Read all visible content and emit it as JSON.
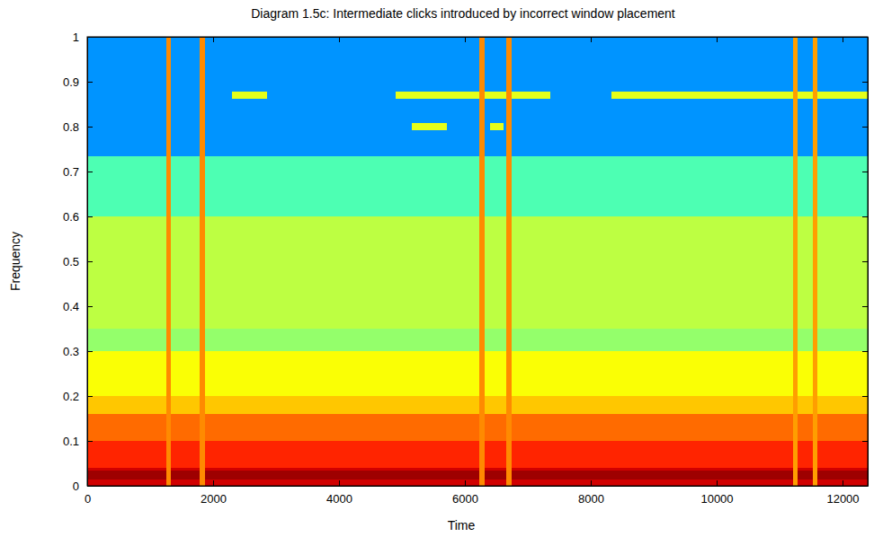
{
  "chart_data": {
    "type": "heatmap",
    "title": "Diagram 1.5c: Intermediate clicks introduced by incorrect window placement",
    "x_label": "Time",
    "y_label": "Frequency",
    "xlim": [
      0,
      12400
    ],
    "ylim": [
      0,
      1
    ],
    "xticks": [
      0,
      2000,
      4000,
      6000,
      8000,
      10000,
      12000
    ],
    "yticks": [
      0,
      0.1,
      0.2,
      0.3,
      0.4,
      0.5,
      0.6,
      0.7,
      0.8,
      0.9,
      1
    ],
    "color_range": [
      0,
      1
    ],
    "cells": [
      {
        "x0": 0,
        "x1": 12400,
        "y0": 0.735,
        "y1": 1,
        "value": 0.27
      },
      {
        "x0": 0,
        "x1": 12400,
        "y0": 0.6,
        "y1": 0.735,
        "value": 0.45
      },
      {
        "x0": 0,
        "x1": 12400,
        "y0": 0.35,
        "y1": 0.6,
        "value": 0.56
      },
      {
        "x0": 0,
        "x1": 12400,
        "y0": 0.3,
        "y1": 0.35,
        "value": 0.52
      },
      {
        "x0": 0,
        "x1": 12400,
        "y0": 0.2,
        "y1": 0.3,
        "value": 0.62
      },
      {
        "x0": 0,
        "x1": 12400,
        "y0": 0.16,
        "y1": 0.2,
        "value": 0.68
      },
      {
        "x0": 0,
        "x1": 12400,
        "y0": 0.1,
        "y1": 0.16,
        "value": 0.77
      },
      {
        "x0": 0,
        "x1": 12400,
        "y0": 0.04,
        "y1": 0.1,
        "value": 0.84
      },
      {
        "x0": 0,
        "x1": 12400,
        "y0": 0,
        "y1": 0.04,
        "value": 0.92
      },
      {
        "x0": 0,
        "x1": 12400,
        "y0": 0.015,
        "y1": 0.035,
        "value": 0.97
      },
      {
        "x0": 2300,
        "x1": 2860,
        "y0": 0.862,
        "y1": 0.878,
        "value": 0.6
      },
      {
        "x0": 4900,
        "x1": 7360,
        "y0": 0.862,
        "y1": 0.878,
        "value": 0.6
      },
      {
        "x0": 8330,
        "x1": 12400,
        "y0": 0.862,
        "y1": 0.878,
        "value": 0.6
      },
      {
        "x0": 5160,
        "x1": 5710,
        "y0": 0.792,
        "y1": 0.808,
        "value": 0.6
      },
      {
        "x0": 6400,
        "x1": 6610,
        "y0": 0.792,
        "y1": 0.808,
        "value": 0.6
      },
      {
        "x0": 1250,
        "x1": 1330,
        "y0": 0,
        "y1": 1,
        "value": 0.74
      },
      {
        "x0": 1790,
        "x1": 1870,
        "y0": 0,
        "y1": 1,
        "value": 0.74
      },
      {
        "x0": 6230,
        "x1": 6310,
        "y0": 0,
        "y1": 1,
        "value": 0.74
      },
      {
        "x0": 6660,
        "x1": 6740,
        "y0": 0,
        "y1": 1,
        "value": 0.74
      },
      {
        "x0": 11210,
        "x1": 11280,
        "y0": 0,
        "y1": 1,
        "value": 0.72
      },
      {
        "x0": 11535,
        "x1": 11605,
        "y0": 0,
        "y1": 1,
        "value": 0.72
      }
    ]
  }
}
